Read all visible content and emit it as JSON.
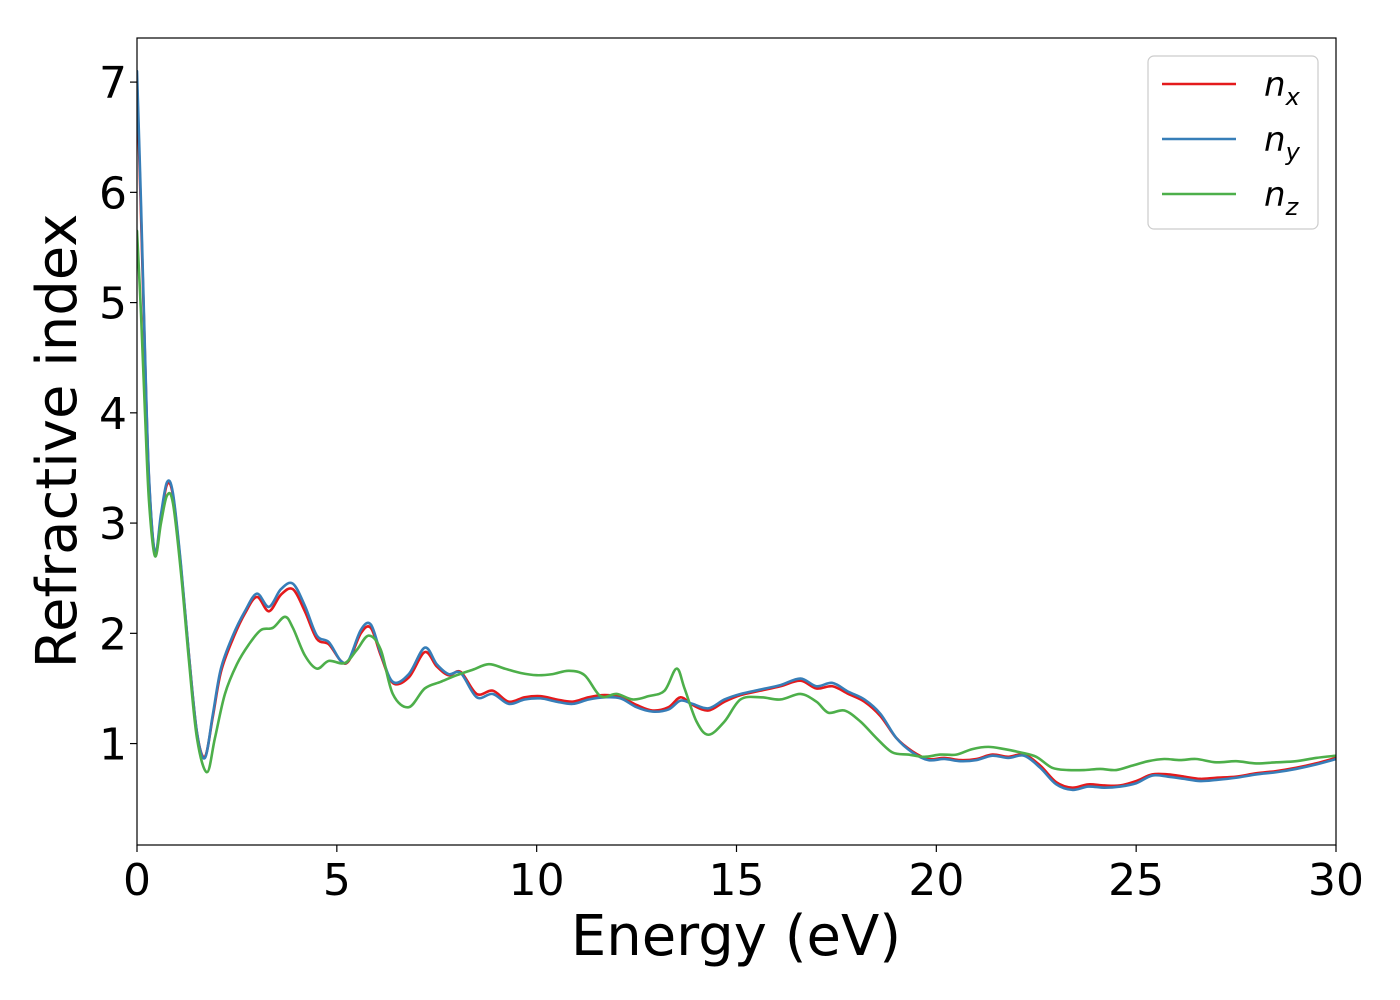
{
  "chart_data": {
    "type": "line",
    "xlabel": "Energy (eV)",
    "ylabel": "Refractive index",
    "xlim": [
      0,
      30
    ],
    "ylim": [
      0.08,
      7.4
    ],
    "xticks": [
      0,
      5,
      10,
      15,
      20,
      25,
      30
    ],
    "xtick_labels": [
      "0",
      "5",
      "10",
      "15",
      "20",
      "25",
      "30"
    ],
    "yticks": [
      1,
      2,
      3,
      4,
      5,
      6,
      7
    ],
    "ytick_labels": [
      "1",
      "2",
      "3",
      "4",
      "5",
      "6",
      "7"
    ],
    "grid": false,
    "legend_position": "top-right",
    "series": [
      {
        "name": "n",
        "subscript": "x",
        "color": "#e41a1c",
        "points": [
          [
            0.0,
            7.0
          ],
          [
            0.1,
            5.8
          ],
          [
            0.2,
            4.5
          ],
          [
            0.3,
            3.4
          ],
          [
            0.45,
            2.72
          ],
          [
            0.6,
            3.05
          ],
          [
            0.75,
            3.35
          ],
          [
            0.9,
            3.25
          ],
          [
            1.1,
            2.6
          ],
          [
            1.3,
            1.8
          ],
          [
            1.5,
            1.1
          ],
          [
            1.7,
            0.88
          ],
          [
            1.9,
            1.25
          ],
          [
            2.1,
            1.65
          ],
          [
            2.4,
            1.95
          ],
          [
            2.7,
            2.18
          ],
          [
            3.0,
            2.33
          ],
          [
            3.3,
            2.2
          ],
          [
            3.6,
            2.35
          ],
          [
            3.9,
            2.4
          ],
          [
            4.2,
            2.2
          ],
          [
            4.5,
            1.95
          ],
          [
            4.8,
            1.9
          ],
          [
            5.1,
            1.75
          ],
          [
            5.3,
            1.75
          ],
          [
            5.6,
            2.0
          ],
          [
            5.85,
            2.05
          ],
          [
            6.1,
            1.8
          ],
          [
            6.4,
            1.55
          ],
          [
            6.8,
            1.6
          ],
          [
            7.2,
            1.83
          ],
          [
            7.5,
            1.7
          ],
          [
            7.8,
            1.62
          ],
          [
            8.1,
            1.65
          ],
          [
            8.5,
            1.45
          ],
          [
            8.9,
            1.48
          ],
          [
            9.3,
            1.38
          ],
          [
            9.7,
            1.42
          ],
          [
            10.1,
            1.43
          ],
          [
            10.5,
            1.4
          ],
          [
            10.9,
            1.38
          ],
          [
            11.3,
            1.42
          ],
          [
            11.7,
            1.44
          ],
          [
            12.1,
            1.42
          ],
          [
            12.5,
            1.35
          ],
          [
            12.9,
            1.3
          ],
          [
            13.3,
            1.33
          ],
          [
            13.6,
            1.42
          ],
          [
            13.9,
            1.35
          ],
          [
            14.3,
            1.3
          ],
          [
            14.7,
            1.38
          ],
          [
            15.1,
            1.44
          ],
          [
            15.6,
            1.48
          ],
          [
            16.1,
            1.52
          ],
          [
            16.6,
            1.57
          ],
          [
            17.0,
            1.5
          ],
          [
            17.4,
            1.52
          ],
          [
            17.8,
            1.45
          ],
          [
            18.2,
            1.38
          ],
          [
            18.6,
            1.25
          ],
          [
            19.0,
            1.05
          ],
          [
            19.4,
            0.93
          ],
          [
            19.8,
            0.86
          ],
          [
            20.2,
            0.87
          ],
          [
            20.6,
            0.85
          ],
          [
            21.0,
            0.86
          ],
          [
            21.4,
            0.9
          ],
          [
            21.8,
            0.88
          ],
          [
            22.2,
            0.9
          ],
          [
            22.6,
            0.8
          ],
          [
            23.0,
            0.65
          ],
          [
            23.4,
            0.6
          ],
          [
            23.8,
            0.63
          ],
          [
            24.2,
            0.62
          ],
          [
            24.6,
            0.62
          ],
          [
            25.0,
            0.66
          ],
          [
            25.4,
            0.72
          ],
          [
            25.8,
            0.72
          ],
          [
            26.2,
            0.7
          ],
          [
            26.6,
            0.68
          ],
          [
            27.0,
            0.69
          ],
          [
            27.5,
            0.7
          ],
          [
            28.0,
            0.73
          ],
          [
            28.5,
            0.75
          ],
          [
            29.0,
            0.78
          ],
          [
            29.5,
            0.82
          ],
          [
            30.0,
            0.87
          ]
        ]
      },
      {
        "name": "n",
        "subscript": "y",
        "color": "#377eb8",
        "points": [
          [
            0.0,
            7.1
          ],
          [
            0.1,
            5.9
          ],
          [
            0.2,
            4.55
          ],
          [
            0.3,
            3.42
          ],
          [
            0.45,
            2.73
          ],
          [
            0.6,
            3.08
          ],
          [
            0.75,
            3.37
          ],
          [
            0.9,
            3.27
          ],
          [
            1.1,
            2.62
          ],
          [
            1.3,
            1.8
          ],
          [
            1.5,
            1.1
          ],
          [
            1.7,
            0.87
          ],
          [
            1.9,
            1.27
          ],
          [
            2.1,
            1.68
          ],
          [
            2.4,
            1.98
          ],
          [
            2.7,
            2.2
          ],
          [
            3.0,
            2.36
          ],
          [
            3.3,
            2.24
          ],
          [
            3.6,
            2.4
          ],
          [
            3.9,
            2.45
          ],
          [
            4.2,
            2.25
          ],
          [
            4.5,
            1.98
          ],
          [
            4.8,
            1.92
          ],
          [
            5.1,
            1.75
          ],
          [
            5.3,
            1.76
          ],
          [
            5.6,
            2.03
          ],
          [
            5.85,
            2.08
          ],
          [
            6.1,
            1.82
          ],
          [
            6.4,
            1.56
          ],
          [
            6.8,
            1.63
          ],
          [
            7.2,
            1.87
          ],
          [
            7.5,
            1.72
          ],
          [
            7.8,
            1.63
          ],
          [
            8.1,
            1.64
          ],
          [
            8.5,
            1.42
          ],
          [
            8.9,
            1.45
          ],
          [
            9.3,
            1.36
          ],
          [
            9.7,
            1.4
          ],
          [
            10.1,
            1.41
          ],
          [
            10.5,
            1.38
          ],
          [
            10.9,
            1.36
          ],
          [
            11.3,
            1.4
          ],
          [
            11.7,
            1.42
          ],
          [
            12.1,
            1.41
          ],
          [
            12.5,
            1.33
          ],
          [
            12.9,
            1.29
          ],
          [
            13.3,
            1.31
          ],
          [
            13.6,
            1.39
          ],
          [
            13.9,
            1.36
          ],
          [
            14.3,
            1.32
          ],
          [
            14.7,
            1.4
          ],
          [
            15.1,
            1.45
          ],
          [
            15.6,
            1.49
          ],
          [
            16.1,
            1.53
          ],
          [
            16.6,
            1.59
          ],
          [
            17.0,
            1.52
          ],
          [
            17.4,
            1.55
          ],
          [
            17.8,
            1.47
          ],
          [
            18.2,
            1.4
          ],
          [
            18.6,
            1.27
          ],
          [
            19.0,
            1.05
          ],
          [
            19.4,
            0.92
          ],
          [
            19.8,
            0.85
          ],
          [
            20.2,
            0.86
          ],
          [
            20.6,
            0.84
          ],
          [
            21.0,
            0.85
          ],
          [
            21.4,
            0.89
          ],
          [
            21.8,
            0.87
          ],
          [
            22.2,
            0.89
          ],
          [
            22.6,
            0.78
          ],
          [
            23.0,
            0.63
          ],
          [
            23.4,
            0.58
          ],
          [
            23.8,
            0.61
          ],
          [
            24.2,
            0.6
          ],
          [
            24.6,
            0.61
          ],
          [
            25.0,
            0.64
          ],
          [
            25.4,
            0.71
          ],
          [
            25.8,
            0.7
          ],
          [
            26.2,
            0.68
          ],
          [
            26.6,
            0.66
          ],
          [
            27.0,
            0.67
          ],
          [
            27.5,
            0.69
          ],
          [
            28.0,
            0.72
          ],
          [
            28.5,
            0.74
          ],
          [
            29.0,
            0.77
          ],
          [
            29.5,
            0.81
          ],
          [
            30.0,
            0.86
          ]
        ]
      },
      {
        "name": "n",
        "subscript": "z",
        "color": "#4daf4a",
        "points": [
          [
            0.0,
            5.65
          ],
          [
            0.1,
            4.9
          ],
          [
            0.2,
            4.0
          ],
          [
            0.3,
            3.2
          ],
          [
            0.45,
            2.7
          ],
          [
            0.6,
            3.0
          ],
          [
            0.75,
            3.25
          ],
          [
            0.9,
            3.18
          ],
          [
            1.1,
            2.55
          ],
          [
            1.3,
            1.75
          ],
          [
            1.5,
            1.05
          ],
          [
            1.75,
            0.74
          ],
          [
            1.95,
            1.05
          ],
          [
            2.2,
            1.45
          ],
          [
            2.5,
            1.72
          ],
          [
            2.8,
            1.9
          ],
          [
            3.1,
            2.03
          ],
          [
            3.4,
            2.05
          ],
          [
            3.7,
            2.15
          ],
          [
            3.9,
            2.05
          ],
          [
            4.2,
            1.8
          ],
          [
            4.5,
            1.68
          ],
          [
            4.8,
            1.75
          ],
          [
            5.2,
            1.73
          ],
          [
            5.5,
            1.85
          ],
          [
            5.8,
            1.98
          ],
          [
            6.1,
            1.85
          ],
          [
            6.4,
            1.45
          ],
          [
            6.8,
            1.33
          ],
          [
            7.2,
            1.5
          ],
          [
            7.6,
            1.56
          ],
          [
            8.0,
            1.62
          ],
          [
            8.4,
            1.67
          ],
          [
            8.8,
            1.72
          ],
          [
            9.2,
            1.68
          ],
          [
            9.6,
            1.64
          ],
          [
            10.0,
            1.62
          ],
          [
            10.4,
            1.63
          ],
          [
            10.8,
            1.66
          ],
          [
            11.2,
            1.62
          ],
          [
            11.6,
            1.43
          ],
          [
            12.0,
            1.45
          ],
          [
            12.4,
            1.4
          ],
          [
            12.8,
            1.43
          ],
          [
            13.2,
            1.48
          ],
          [
            13.5,
            1.68
          ],
          [
            13.7,
            1.5
          ],
          [
            14.0,
            1.2
          ],
          [
            14.3,
            1.08
          ],
          [
            14.7,
            1.2
          ],
          [
            15.1,
            1.4
          ],
          [
            15.6,
            1.42
          ],
          [
            16.1,
            1.4
          ],
          [
            16.6,
            1.45
          ],
          [
            17.0,
            1.38
          ],
          [
            17.3,
            1.28
          ],
          [
            17.7,
            1.3
          ],
          [
            18.1,
            1.2
          ],
          [
            18.5,
            1.05
          ],
          [
            18.9,
            0.92
          ],
          [
            19.3,
            0.9
          ],
          [
            19.7,
            0.88
          ],
          [
            20.1,
            0.9
          ],
          [
            20.5,
            0.9
          ],
          [
            20.9,
            0.95
          ],
          [
            21.3,
            0.97
          ],
          [
            21.7,
            0.95
          ],
          [
            22.1,
            0.92
          ],
          [
            22.5,
            0.88
          ],
          [
            22.9,
            0.78
          ],
          [
            23.3,
            0.76
          ],
          [
            23.7,
            0.76
          ],
          [
            24.1,
            0.77
          ],
          [
            24.5,
            0.76
          ],
          [
            24.9,
            0.8
          ],
          [
            25.3,
            0.84
          ],
          [
            25.7,
            0.86
          ],
          [
            26.1,
            0.85
          ],
          [
            26.5,
            0.86
          ],
          [
            27.0,
            0.83
          ],
          [
            27.5,
            0.84
          ],
          [
            28.0,
            0.82
          ],
          [
            28.5,
            0.83
          ],
          [
            29.0,
            0.84
          ],
          [
            29.5,
            0.87
          ],
          [
            30.0,
            0.89
          ]
        ]
      }
    ]
  }
}
